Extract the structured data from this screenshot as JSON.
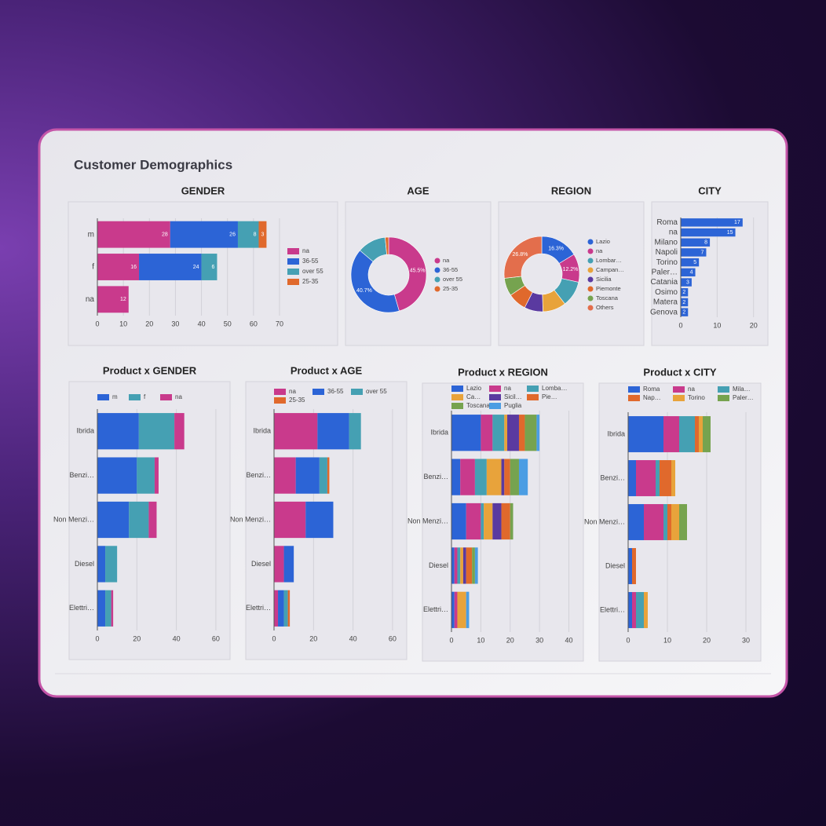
{
  "header": {
    "title": "Customer Demographics"
  },
  "chart_data": [
    {
      "type": "stacked-bar",
      "title": "GENDER",
      "categories": [
        "m",
        "f",
        "na"
      ],
      "series": [
        {
          "name": "na",
          "color": "#c93a8c",
          "values": [
            28,
            16,
            12
          ]
        },
        {
          "name": "36-55",
          "color": "#2c64d6",
          "values": [
            26,
            24,
            null
          ]
        },
        {
          "name": "over 55",
          "color": "#45a0b3",
          "values": [
            8,
            6,
            null
          ]
        },
        {
          "name": "25-35",
          "color": "#e0692c",
          "values": [
            3,
            null,
            null
          ]
        }
      ],
      "xlim": [
        0,
        70
      ],
      "xticks": [
        0,
        10,
        20,
        30,
        40,
        50,
        60,
        70
      ],
      "grid": true,
      "legend": "right",
      "data_labels": true
    },
    {
      "type": "donut",
      "title": "AGE",
      "categories": [
        "na",
        "36-55",
        "over 55",
        "25-35"
      ],
      "values": [
        45.5,
        40.7,
        12.3,
        1.5
      ],
      "value_labels": [
        "45.5%",
        "40.7%",
        null,
        null
      ],
      "colors": [
        "#c93a8c",
        "#2c64d6",
        "#45a0b3",
        "#e0692c"
      ],
      "legend": "right"
    },
    {
      "type": "donut",
      "title": "REGION",
      "categories": [
        "Lazio",
        "na",
        "Lombar…",
        "Campan…",
        "Sicilia",
        "Piemonte",
        "Toscana",
        "Others"
      ],
      "values": [
        16.3,
        12.2,
        11,
        10,
        8,
        8,
        7.7,
        26.8
      ],
      "value_labels": [
        "16.3%",
        "12.2%",
        null,
        null,
        null,
        null,
        null,
        "26.8%"
      ],
      "colors": [
        "#2c64d6",
        "#c93a8c",
        "#45a0b3",
        "#e8a33b",
        "#5a3aa0",
        "#e0692c",
        "#76a34f",
        "#e36e4c"
      ],
      "legend": "right"
    },
    {
      "type": "bar",
      "title": "CITY",
      "categories": [
        "Roma",
        "na",
        "Milano",
        "Napoli",
        "Torino",
        "Paler…",
        "Catania",
        "Osimo",
        "Matera",
        "Genova"
      ],
      "values": [
        17,
        15,
        8,
        7,
        5,
        4,
        3,
        2,
        2,
        2
      ],
      "color": "#2c64d6",
      "xlim": [
        0,
        22
      ],
      "xticks": [
        0,
        10,
        20
      ],
      "grid": true,
      "data_labels": true
    },
    {
      "type": "stacked-bar",
      "title": "Product x GENDER",
      "categories": [
        "Ibrida",
        "Benzi…",
        "Non Menzi…",
        "Diesel",
        "Elettri…"
      ],
      "series": [
        {
          "name": "m",
          "color": "#2c64d6",
          "values": [
            21,
            20,
            16,
            4,
            4
          ]
        },
        {
          "name": "f",
          "color": "#45a0b3",
          "values": [
            18,
            9,
            10,
            6,
            3
          ]
        },
        {
          "name": "na",
          "color": "#c93a8c",
          "values": [
            5,
            2,
            4,
            null,
            1
          ]
        }
      ],
      "xlim": [
        0,
        64
      ],
      "xticks": [
        0,
        20,
        40,
        60
      ],
      "grid": true,
      "legend": "top"
    },
    {
      "type": "stacked-bar",
      "title": "Product x AGE",
      "categories": [
        "Ibrida",
        "Benzi…",
        "Non Menzi…",
        "Diesel",
        "Elettri…"
      ],
      "series": [
        {
          "name": "na",
          "color": "#c93a8c",
          "values": [
            22,
            11,
            16,
            5,
            2
          ]
        },
        {
          "name": "36-55",
          "color": "#2c64d6",
          "values": [
            16,
            12,
            14,
            5,
            3
          ]
        },
        {
          "name": "over 55",
          "color": "#45a0b3",
          "values": [
            6,
            4,
            null,
            null,
            2
          ]
        },
        {
          "name": "25-35",
          "color": "#e0692c",
          "values": [
            null,
            1,
            null,
            null,
            1
          ]
        }
      ],
      "xlim": [
        0,
        64
      ],
      "xticks": [
        0,
        20,
        40,
        60
      ],
      "grid": true,
      "legend": "top"
    },
    {
      "type": "stacked-bar",
      "title": "Product x REGION",
      "categories": [
        "Ibrida",
        "Benzi…",
        "Non Menzi…",
        "Diesel",
        "Elettri…"
      ],
      "series": [
        {
          "name": "Lazio",
          "color": "#2c64d6",
          "values": [
            10,
            3,
            5,
            1,
            1
          ]
        },
        {
          "name": "na",
          "color": "#c93a8c",
          "values": [
            4,
            5,
            5,
            1,
            1
          ]
        },
        {
          "name": "Lomba…",
          "color": "#45a0b3",
          "values": [
            4,
            4,
            1,
            1,
            null
          ]
        },
        {
          "name": "Ca…",
          "color": "#e8a33b",
          "values": [
            1,
            5,
            3,
            1,
            3
          ]
        },
        {
          "name": "Sicil…",
          "color": "#5a3aa0",
          "values": [
            4,
            1,
            3,
            1,
            null
          ]
        },
        {
          "name": "Pie…",
          "color": "#e0692c",
          "values": [
            2,
            2,
            3,
            2,
            null
          ]
        },
        {
          "name": "Toscana",
          "color": "#76a34f",
          "values": [
            4,
            3,
            1,
            1,
            null
          ]
        },
        {
          "name": "Puglia",
          "color": "#4b9de3",
          "values": [
            1,
            3,
            null,
            1,
            1
          ]
        }
      ],
      "xlim": [
        0,
        42
      ],
      "xticks": [
        0,
        10,
        20,
        30,
        40
      ],
      "grid": true,
      "legend": "top"
    },
    {
      "type": "stacked-bar",
      "title": "Product x CITY",
      "categories": [
        "Ibrida",
        "Benzi…",
        "Non Menzi…",
        "Diesel",
        "Elettri…"
      ],
      "series": [
        {
          "name": "Roma",
          "color": "#2c64d6",
          "values": [
            9,
            2,
            4,
            1,
            1
          ]
        },
        {
          "name": "na",
          "color": "#c93a8c",
          "values": [
            4,
            5,
            5,
            null,
            1
          ]
        },
        {
          "name": "Mila…",
          "color": "#45a0b3",
          "values": [
            4,
            1,
            1,
            null,
            2
          ]
        },
        {
          "name": "Nap…",
          "color": "#e0692c",
          "values": [
            1,
            3,
            1,
            1,
            null
          ]
        },
        {
          "name": "Torino",
          "color": "#e8a33b",
          "values": [
            1,
            1,
            2,
            null,
            1
          ]
        },
        {
          "name": "Paler…",
          "color": "#76a34f",
          "values": [
            2,
            null,
            2,
            null,
            null
          ]
        }
      ],
      "xlim": [
        0,
        33
      ],
      "xticks": [
        0,
        10,
        20,
        30
      ],
      "grid": true,
      "legend": "top"
    }
  ]
}
